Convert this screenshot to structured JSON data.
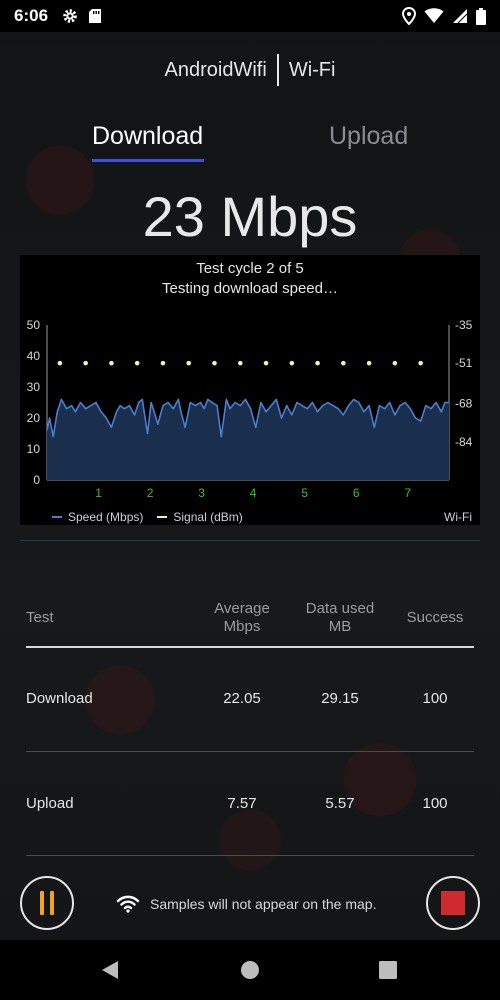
{
  "status_bar": {
    "time": "6:06",
    "icons_left": [
      "gear-icon",
      "sd-card-icon"
    ],
    "icons_right": [
      "location-icon",
      "wifi-icon",
      "signal-icon",
      "battery-icon"
    ]
  },
  "header": {
    "network_name": "AndroidWifi",
    "network_type": "Wi-Fi"
  },
  "tabs": [
    {
      "label": "Download",
      "active": true
    },
    {
      "label": "Upload",
      "active": false
    }
  ],
  "speed_readout": "23 Mbps",
  "chart_status": {
    "cycle": "Test cycle 2 of 5",
    "message": "Testing download speed…"
  },
  "chart_data": {
    "type": "area",
    "y_left_ticks": [
      "50",
      "40",
      "30",
      "20",
      "10",
      "0"
    ],
    "y_left_range": [
      0,
      50
    ],
    "y_right_ticks": [
      "-35",
      "-51",
      "-68",
      "-84"
    ],
    "y_right_range": [
      -35,
      -100
    ],
    "x_ticks": [
      "1",
      "2",
      "3",
      "4",
      "5",
      "6",
      "7"
    ],
    "x_range": [
      0,
      7.8
    ],
    "series": [
      {
        "name": "Speed (Mbps)",
        "axis": "left",
        "color": "#4a7fd0",
        "fill": "#1a2f4e",
        "x": [
          0,
          0.05,
          0.12,
          0.2,
          0.28,
          0.38,
          0.48,
          0.55,
          0.65,
          0.75,
          0.85,
          0.95,
          1.05,
          1.15,
          1.25,
          1.35,
          1.42,
          1.5,
          1.6,
          1.7,
          1.78,
          1.85,
          1.95,
          2.02,
          2.08,
          2.15,
          2.25,
          2.35,
          2.45,
          2.55,
          2.6,
          2.68,
          2.78,
          2.88,
          2.98,
          3.05,
          3.12,
          3.2,
          3.3,
          3.38,
          3.48,
          3.55,
          3.65,
          3.75,
          3.85,
          3.95,
          4.05,
          4.15,
          4.25,
          4.35,
          4.45,
          4.55,
          4.65,
          4.75,
          4.85,
          4.95,
          5.05,
          5.15,
          5.25,
          5.35,
          5.45,
          5.55,
          5.65,
          5.75,
          5.85,
          5.95,
          6.05,
          6.15,
          6.25,
          6.35,
          6.45,
          6.55,
          6.65,
          6.75,
          6.85,
          6.95,
          7.05,
          7.15,
          7.25,
          7.35,
          7.45,
          7.55,
          7.65,
          7.72,
          7.8
        ],
        "values": [
          16,
          20,
          14,
          22,
          26,
          23,
          24,
          22,
          25,
          23,
          24,
          25,
          22,
          20,
          17,
          22,
          24,
          23,
          24,
          21,
          25,
          26,
          15,
          25,
          22,
          18,
          24,
          25,
          23,
          26,
          22,
          17,
          25,
          24,
          25,
          23,
          26,
          25,
          24,
          14,
          26,
          23,
          25,
          24,
          26,
          23,
          17,
          25,
          22,
          24,
          26,
          20,
          24,
          21,
          25,
          24,
          23,
          25,
          22,
          24,
          25,
          24,
          23,
          21,
          24,
          26,
          25,
          22,
          24,
          17,
          24,
          23,
          25,
          21,
          24,
          25,
          23,
          20,
          19,
          24,
          23,
          25,
          22,
          25,
          25
        ]
      },
      {
        "name": "Signal (dBm)",
        "axis": "right",
        "color": "#f2f5a0",
        "x": [
          0.25,
          0.75,
          1.25,
          1.75,
          2.25,
          2.75,
          3.25,
          3.75,
          4.25,
          4.75,
          5.25,
          5.75,
          6.25,
          6.75,
          7.25
        ],
        "values": [
          -51,
          -51,
          -51,
          -51,
          -51,
          -51,
          -51,
          -51,
          -51,
          -51,
          -51,
          -51,
          -51,
          -51,
          -51
        ]
      }
    ],
    "legend": [
      "Speed (Mbps)",
      "Signal (dBm)"
    ],
    "legend_right": "Wi-Fi",
    "x_tick_color": "#39c02d",
    "grid": false
  },
  "table": {
    "headers": {
      "test": "Test",
      "avg_line1": "Average",
      "avg_line2": "Mbps",
      "data_line1": "Data used",
      "data_line2": "MB",
      "success": "Success"
    },
    "rows": [
      {
        "test": "Download",
        "avg": "22.05",
        "data": "29.15",
        "success": "100"
      },
      {
        "test": "Upload",
        "avg": "7.57",
        "data": "5.57",
        "success": "100"
      }
    ]
  },
  "bottom": {
    "note": "Samples will not appear on the map.",
    "pause_color": "#f2a51c",
    "stop_color": "#d02a2f"
  },
  "nav": [
    "back-icon",
    "home-icon",
    "recents-icon"
  ]
}
